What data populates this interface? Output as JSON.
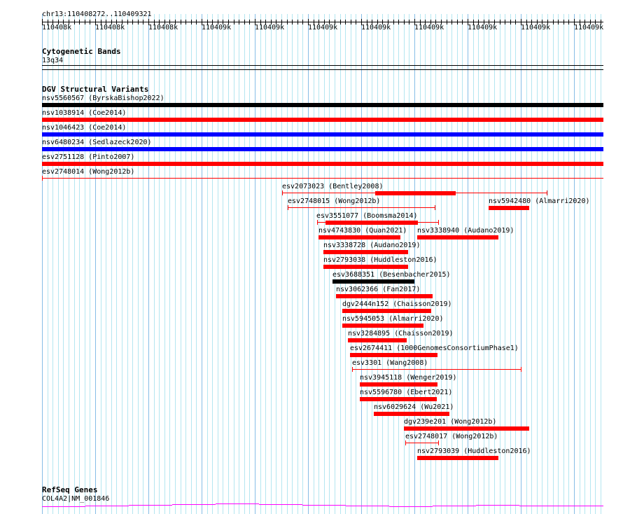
{
  "ruler": {
    "location": "chr13:110408272..110409321",
    "tick_labels": [
      "110408k",
      "110408k",
      "110408k",
      "110409k",
      "110409k",
      "110409k",
      "110409k",
      "110409k",
      "110409k",
      "110409k",
      "110409k"
    ]
  },
  "tracks": {
    "cytobands": {
      "title": "Cytogenetic Bands",
      "band": "13q34"
    },
    "dgv": {
      "title": "DGV Structural Variants",
      "colors": {
        "loss": "#ff0000",
        "gain": "#0000ff",
        "both": "#000000"
      },
      "features": [
        {
          "label": "nsv5560567 (ByrskaBishop2022)",
          "color": "#000000"
        },
        {
          "label": "nsv1038914 (Coe2014)",
          "color": "#ff0000"
        },
        {
          "label": "nsv1046423 (Coe2014)",
          "color": "#0000ff"
        },
        {
          "label": "nsv6480234 (Sedlazeck2020)",
          "color": "#0000ff"
        },
        {
          "label": "esv2751128 (Pinto2007)",
          "color": "#ff0000"
        },
        {
          "label": "esv2748014 (Wong2012b)",
          "color": "#ff0000"
        },
        {
          "label": "esv2073023 (Bentley2008)",
          "color": "#ff0000"
        },
        {
          "label": "nsv5942480 (Almarri2020)",
          "color": "#ff0000"
        },
        {
          "label": "esv2748015 (Wong2012b)",
          "color": "#ff0000"
        },
        {
          "label": "esv3551077 (Boomsma2014)",
          "color": "#ff0000"
        },
        {
          "label": "nsv4743830 (Quan2021)",
          "color": "#ff0000"
        },
        {
          "label": "nsv3338940 (Audano2019)",
          "color": "#ff0000"
        },
        {
          "label": "nsv3338728 (Audano2019)",
          "color": "#ff0000"
        },
        {
          "label": "nsv2793038 (Huddleston2016)",
          "color": "#ff0000"
        },
        {
          "label": "esv3688351 (Besenbacher2015)",
          "color": "#000000"
        },
        {
          "label": "nsv3062366 (Fan2017)",
          "color": "#ff0000"
        },
        {
          "label": "dgv2444n152 (Chaisson2019)",
          "color": "#ff0000"
        },
        {
          "label": "nsv5945053 (Almarri2020)",
          "color": "#ff0000"
        },
        {
          "label": "nsv3284895 (Chaisson2019)",
          "color": "#ff0000"
        },
        {
          "label": "esv2674411 (1000GenomesConsortiumPhase1)",
          "color": "#ff0000"
        },
        {
          "label": "esv3301 (Wang2008)",
          "color": "#ff0000"
        },
        {
          "label": "nsv3945118 (Wenger2019)",
          "color": "#ff0000"
        },
        {
          "label": "nsv5596780 (Ebert2021)",
          "color": "#ff0000"
        },
        {
          "label": "nsv6029624 (Wu2021)",
          "color": "#ff0000"
        },
        {
          "label": "dgv239e201 (Wong2012b)",
          "color": "#ff0000"
        },
        {
          "label": "esv2748017 (Wong2012b)",
          "color": "#ff0000"
        },
        {
          "label": "nsv2793039 (Huddleston2016)",
          "color": "#ff0000"
        }
      ]
    },
    "refseq": {
      "title": "RefSeq Genes",
      "gene": "COL4A2|NM_001846",
      "color": "#ff00ff"
    }
  }
}
